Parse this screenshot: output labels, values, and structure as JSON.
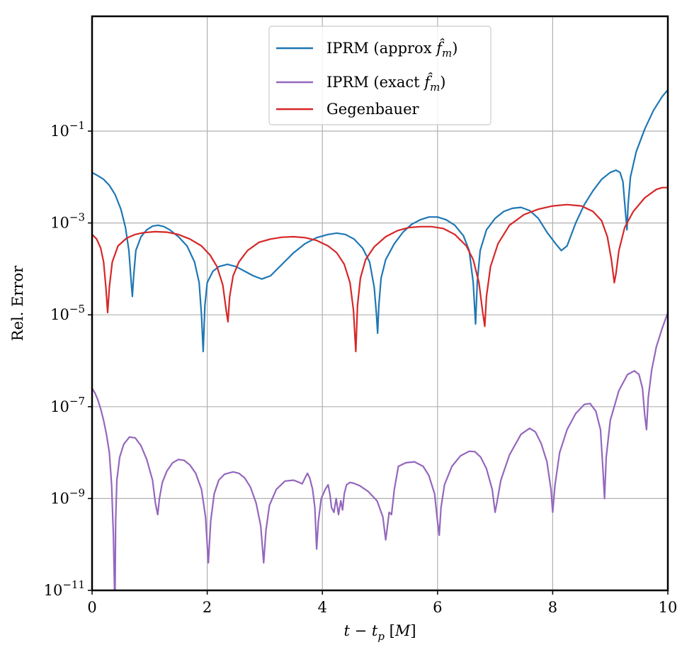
{
  "chart_data": {
    "type": "line",
    "title": "",
    "xlabel": "t − t_p [M]",
    "ylabel": "Rel. Error",
    "xlim": [
      0,
      10
    ],
    "ylim_log10": [
      -11,
      1.5
    ],
    "yscale": "log",
    "grid": true,
    "legend_position": "upper-center",
    "x_ticks": [
      0,
      2,
      4,
      6,
      8,
      10
    ],
    "x_tick_labels": [
      "0",
      "2",
      "4",
      "6",
      "8",
      "10"
    ],
    "y_ticks_log10": [
      -11,
      -9,
      -7,
      -5,
      -3,
      -1
    ],
    "y_tick_labels": [
      {
        "base": "10",
        "exp": "−11"
      },
      {
        "base": "10",
        "exp": "−9"
      },
      {
        "base": "10",
        "exp": "−7"
      },
      {
        "base": "10",
        "exp": "−5"
      },
      {
        "base": "10",
        "exp": "−3"
      },
      {
        "base": "10",
        "exp": "−1"
      }
    ],
    "series": [
      {
        "name": "IPRM (approx f̂m)",
        "legend_main": "IPRM (approx ",
        "legend_sym": "f̂",
        "legend_sub": "m",
        "legend_close": ")",
        "color": "#1f77b4",
        "points": [
          [
            0.0,
            -1.9
          ],
          [
            0.1,
            -1.97
          ],
          [
            0.2,
            -2.05
          ],
          [
            0.3,
            -2.18
          ],
          [
            0.4,
            -2.38
          ],
          [
            0.5,
            -2.7
          ],
          [
            0.58,
            -3.1
          ],
          [
            0.64,
            -3.6
          ],
          [
            0.68,
            -4.3
          ],
          [
            0.7,
            -4.6
          ],
          [
            0.72,
            -4.2
          ],
          [
            0.76,
            -3.6
          ],
          [
            0.85,
            -3.3
          ],
          [
            0.95,
            -3.15
          ],
          [
            1.05,
            -3.07
          ],
          [
            1.15,
            -3.05
          ],
          [
            1.25,
            -3.08
          ],
          [
            1.35,
            -3.15
          ],
          [
            1.5,
            -3.3
          ],
          [
            1.65,
            -3.5
          ],
          [
            1.78,
            -3.85
          ],
          [
            1.86,
            -4.3
          ],
          [
            1.9,
            -5.0
          ],
          [
            1.93,
            -5.8
          ],
          [
            1.96,
            -4.8
          ],
          [
            2.0,
            -4.3
          ],
          [
            2.1,
            -4.05
          ],
          [
            2.2,
            -3.95
          ],
          [
            2.35,
            -3.9
          ],
          [
            2.5,
            -3.95
          ],
          [
            2.65,
            -4.05
          ],
          [
            2.8,
            -4.15
          ],
          [
            2.95,
            -4.22
          ],
          [
            3.1,
            -4.15
          ],
          [
            3.3,
            -3.9
          ],
          [
            3.5,
            -3.65
          ],
          [
            3.7,
            -3.45
          ],
          [
            3.9,
            -3.32
          ],
          [
            4.1,
            -3.25
          ],
          [
            4.25,
            -3.22
          ],
          [
            4.4,
            -3.25
          ],
          [
            4.55,
            -3.35
          ],
          [
            4.7,
            -3.55
          ],
          [
            4.82,
            -3.85
          ],
          [
            4.9,
            -4.4
          ],
          [
            4.94,
            -5.0
          ],
          [
            4.96,
            -5.4
          ],
          [
            4.98,
            -4.8
          ],
          [
            5.02,
            -4.2
          ],
          [
            5.1,
            -3.8
          ],
          [
            5.25,
            -3.45
          ],
          [
            5.4,
            -3.2
          ],
          [
            5.55,
            -3.03
          ],
          [
            5.7,
            -2.93
          ],
          [
            5.85,
            -2.87
          ],
          [
            6.0,
            -2.87
          ],
          [
            6.15,
            -2.93
          ],
          [
            6.3,
            -3.05
          ],
          [
            6.45,
            -3.28
          ],
          [
            6.55,
            -3.6
          ],
          [
            6.62,
            -4.3
          ],
          [
            6.66,
            -5.2
          ],
          [
            6.69,
            -4.3
          ],
          [
            6.74,
            -3.6
          ],
          [
            6.85,
            -3.15
          ],
          [
            7.0,
            -2.9
          ],
          [
            7.15,
            -2.75
          ],
          [
            7.3,
            -2.68
          ],
          [
            7.45,
            -2.66
          ],
          [
            7.6,
            -2.73
          ],
          [
            7.75,
            -2.9
          ],
          [
            7.9,
            -3.2
          ],
          [
            8.05,
            -3.45
          ],
          [
            8.15,
            -3.6
          ],
          [
            8.25,
            -3.5
          ],
          [
            8.4,
            -3.0
          ],
          [
            8.55,
            -2.6
          ],
          [
            8.7,
            -2.3
          ],
          [
            8.85,
            -2.05
          ],
          [
            9.0,
            -1.9
          ],
          [
            9.1,
            -1.85
          ],
          [
            9.17,
            -1.9
          ],
          [
            9.22,
            -2.1
          ],
          [
            9.26,
            -2.7
          ],
          [
            9.29,
            -3.15
          ],
          [
            9.31,
            -2.6
          ],
          [
            9.35,
            -2.0
          ],
          [
            9.45,
            -1.45
          ],
          [
            9.6,
            -0.95
          ],
          [
            9.75,
            -0.55
          ],
          [
            9.9,
            -0.25
          ],
          [
            10.0,
            -0.1
          ]
        ]
      },
      {
        "name": "IPRM (exact f̂m)",
        "legend_main": "IPRM (exact ",
        "legend_sym": "f̂",
        "legend_sub": "m",
        "legend_close": ")",
        "color": "#9467bd",
        "points": [
          [
            0.0,
            -6.6
          ],
          [
            0.05,
            -6.7
          ],
          [
            0.1,
            -6.85
          ],
          [
            0.15,
            -7.05
          ],
          [
            0.2,
            -7.3
          ],
          [
            0.25,
            -7.6
          ],
          [
            0.3,
            -8.0
          ],
          [
            0.34,
            -8.7
          ],
          [
            0.37,
            -9.8
          ],
          [
            0.39,
            -11.0
          ],
          [
            0.4,
            -11.0
          ],
          [
            0.41,
            -9.5
          ],
          [
            0.43,
            -8.6
          ],
          [
            0.48,
            -8.1
          ],
          [
            0.55,
            -7.82
          ],
          [
            0.65,
            -7.66
          ],
          [
            0.75,
            -7.68
          ],
          [
            0.85,
            -7.85
          ],
          [
            0.95,
            -8.15
          ],
          [
            1.05,
            -8.6
          ],
          [
            1.1,
            -9.1
          ],
          [
            1.14,
            -9.35
          ],
          [
            1.17,
            -9.0
          ],
          [
            1.22,
            -8.65
          ],
          [
            1.3,
            -8.4
          ],
          [
            1.4,
            -8.22
          ],
          [
            1.5,
            -8.15
          ],
          [
            1.6,
            -8.17
          ],
          [
            1.7,
            -8.27
          ],
          [
            1.8,
            -8.45
          ],
          [
            1.9,
            -8.8
          ],
          [
            1.97,
            -9.4
          ],
          [
            2.02,
            -10.4
          ],
          [
            2.06,
            -9.5
          ],
          [
            2.12,
            -8.9
          ],
          [
            2.2,
            -8.6
          ],
          [
            2.3,
            -8.47
          ],
          [
            2.45,
            -8.42
          ],
          [
            2.55,
            -8.45
          ],
          [
            2.65,
            -8.55
          ],
          [
            2.75,
            -8.75
          ],
          [
            2.85,
            -9.1
          ],
          [
            2.93,
            -9.6
          ],
          [
            2.98,
            -10.4
          ],
          [
            3.02,
            -9.7
          ],
          [
            3.08,
            -9.15
          ],
          [
            3.2,
            -8.8
          ],
          [
            3.35,
            -8.62
          ],
          [
            3.5,
            -8.6
          ],
          [
            3.6,
            -8.65
          ],
          [
            3.65,
            -8.68
          ],
          [
            3.7,
            -8.55
          ],
          [
            3.74,
            -8.45
          ],
          [
            3.78,
            -8.55
          ],
          [
            3.83,
            -8.8
          ],
          [
            3.87,
            -9.2
          ],
          [
            3.9,
            -10.1
          ],
          [
            3.93,
            -9.5
          ],
          [
            3.98,
            -9.0
          ],
          [
            4.05,
            -8.8
          ],
          [
            4.1,
            -8.7
          ],
          [
            4.13,
            -8.9
          ],
          [
            4.16,
            -9.2
          ],
          [
            4.2,
            -9.3
          ],
          [
            4.24,
            -9.0
          ],
          [
            4.28,
            -9.35
          ],
          [
            4.32,
            -9.05
          ],
          [
            4.35,
            -9.25
          ],
          [
            4.38,
            -8.9
          ],
          [
            4.42,
            -8.7
          ],
          [
            4.48,
            -8.65
          ],
          [
            4.55,
            -8.67
          ],
          [
            4.65,
            -8.72
          ],
          [
            4.8,
            -8.85
          ],
          [
            4.95,
            -9.05
          ],
          [
            5.05,
            -9.4
          ],
          [
            5.1,
            -9.9
          ],
          [
            5.13,
            -9.6
          ],
          [
            5.16,
            -9.3
          ],
          [
            5.2,
            -9.35
          ],
          [
            5.25,
            -8.8
          ],
          [
            5.32,
            -8.3
          ],
          [
            5.45,
            -8.22
          ],
          [
            5.6,
            -8.2
          ],
          [
            5.75,
            -8.3
          ],
          [
            5.85,
            -8.5
          ],
          [
            5.95,
            -8.9
          ],
          [
            6.0,
            -9.5
          ],
          [
            6.03,
            -9.8
          ],
          [
            6.06,
            -9.2
          ],
          [
            6.12,
            -8.7
          ],
          [
            6.25,
            -8.3
          ],
          [
            6.4,
            -8.07
          ],
          [
            6.55,
            -7.97
          ],
          [
            6.65,
            -7.98
          ],
          [
            6.75,
            -8.1
          ],
          [
            6.85,
            -8.35
          ],
          [
            6.95,
            -8.8
          ],
          [
            7.0,
            -9.3
          ],
          [
            7.03,
            -9.1
          ],
          [
            7.1,
            -8.6
          ],
          [
            7.25,
            -8.05
          ],
          [
            7.45,
            -7.6
          ],
          [
            7.6,
            -7.47
          ],
          [
            7.7,
            -7.55
          ],
          [
            7.8,
            -7.8
          ],
          [
            7.9,
            -8.2
          ],
          [
            7.97,
            -8.8
          ],
          [
            8.0,
            -9.3
          ],
          [
            8.04,
            -8.7
          ],
          [
            8.12,
            -8.0
          ],
          [
            8.25,
            -7.5
          ],
          [
            8.4,
            -7.15
          ],
          [
            8.55,
            -6.95
          ],
          [
            8.65,
            -6.93
          ],
          [
            8.75,
            -7.1
          ],
          [
            8.83,
            -7.5
          ],
          [
            8.87,
            -8.3
          ],
          [
            8.9,
            -9.0
          ],
          [
            8.93,
            -8.1
          ],
          [
            9.0,
            -7.3
          ],
          [
            9.15,
            -6.65
          ],
          [
            9.3,
            -6.3
          ],
          [
            9.42,
            -6.22
          ],
          [
            9.5,
            -6.3
          ],
          [
            9.56,
            -6.6
          ],
          [
            9.6,
            -7.2
          ],
          [
            9.63,
            -7.5
          ],
          [
            9.66,
            -6.8
          ],
          [
            9.72,
            -6.2
          ],
          [
            9.8,
            -5.7
          ],
          [
            9.9,
            -5.3
          ],
          [
            10.0,
            -4.95
          ]
        ]
      },
      {
        "name": "Gegenbauer",
        "legend_main": "Gegenbauer",
        "legend_sym": "",
        "legend_sub": "",
        "legend_close": "",
        "color": "#d62728",
        "points": [
          [
            0.0,
            -3.25
          ],
          [
            0.08,
            -3.35
          ],
          [
            0.15,
            -3.55
          ],
          [
            0.2,
            -3.85
          ],
          [
            0.24,
            -4.4
          ],
          [
            0.27,
            -4.95
          ],
          [
            0.3,
            -4.4
          ],
          [
            0.35,
            -3.85
          ],
          [
            0.45,
            -3.5
          ],
          [
            0.6,
            -3.33
          ],
          [
            0.75,
            -3.25
          ],
          [
            0.9,
            -3.21
          ],
          [
            1.1,
            -3.19
          ],
          [
            1.3,
            -3.2
          ],
          [
            1.5,
            -3.25
          ],
          [
            1.7,
            -3.35
          ],
          [
            1.9,
            -3.5
          ],
          [
            2.05,
            -3.7
          ],
          [
            2.17,
            -3.95
          ],
          [
            2.27,
            -4.35
          ],
          [
            2.33,
            -4.9
          ],
          [
            2.36,
            -5.15
          ],
          [
            2.39,
            -4.6
          ],
          [
            2.45,
            -4.15
          ],
          [
            2.55,
            -3.85
          ],
          [
            2.7,
            -3.6
          ],
          [
            2.9,
            -3.42
          ],
          [
            3.1,
            -3.35
          ],
          [
            3.3,
            -3.31
          ],
          [
            3.5,
            -3.3
          ],
          [
            3.7,
            -3.32
          ],
          [
            3.9,
            -3.38
          ],
          [
            4.1,
            -3.5
          ],
          [
            4.25,
            -3.65
          ],
          [
            4.38,
            -3.9
          ],
          [
            4.48,
            -4.3
          ],
          [
            4.54,
            -4.9
          ],
          [
            4.58,
            -5.8
          ],
          [
            4.61,
            -4.8
          ],
          [
            4.66,
            -4.2
          ],
          [
            4.75,
            -3.8
          ],
          [
            4.9,
            -3.52
          ],
          [
            5.1,
            -3.3
          ],
          [
            5.3,
            -3.17
          ],
          [
            5.5,
            -3.1
          ],
          [
            5.7,
            -3.08
          ],
          [
            5.9,
            -3.08
          ],
          [
            6.1,
            -3.12
          ],
          [
            6.3,
            -3.25
          ],
          [
            6.5,
            -3.5
          ],
          [
            6.62,
            -3.8
          ],
          [
            6.72,
            -4.3
          ],
          [
            6.78,
            -4.9
          ],
          [
            6.82,
            -5.25
          ],
          [
            6.85,
            -4.6
          ],
          [
            6.92,
            -3.95
          ],
          [
            7.05,
            -3.45
          ],
          [
            7.25,
            -3.05
          ],
          [
            7.5,
            -2.82
          ],
          [
            7.75,
            -2.7
          ],
          [
            8.0,
            -2.63
          ],
          [
            8.25,
            -2.6
          ],
          [
            8.5,
            -2.63
          ],
          [
            8.7,
            -2.75
          ],
          [
            8.85,
            -2.95
          ],
          [
            8.95,
            -3.3
          ],
          [
            9.02,
            -3.8
          ],
          [
            9.07,
            -4.3
          ],
          [
            9.1,
            -4.1
          ],
          [
            9.15,
            -3.6
          ],
          [
            9.25,
            -3.1
          ],
          [
            9.4,
            -2.75
          ],
          [
            9.6,
            -2.45
          ],
          [
            9.8,
            -2.27
          ],
          [
            9.9,
            -2.23
          ],
          [
            10.0,
            -2.23
          ]
        ]
      }
    ]
  }
}
